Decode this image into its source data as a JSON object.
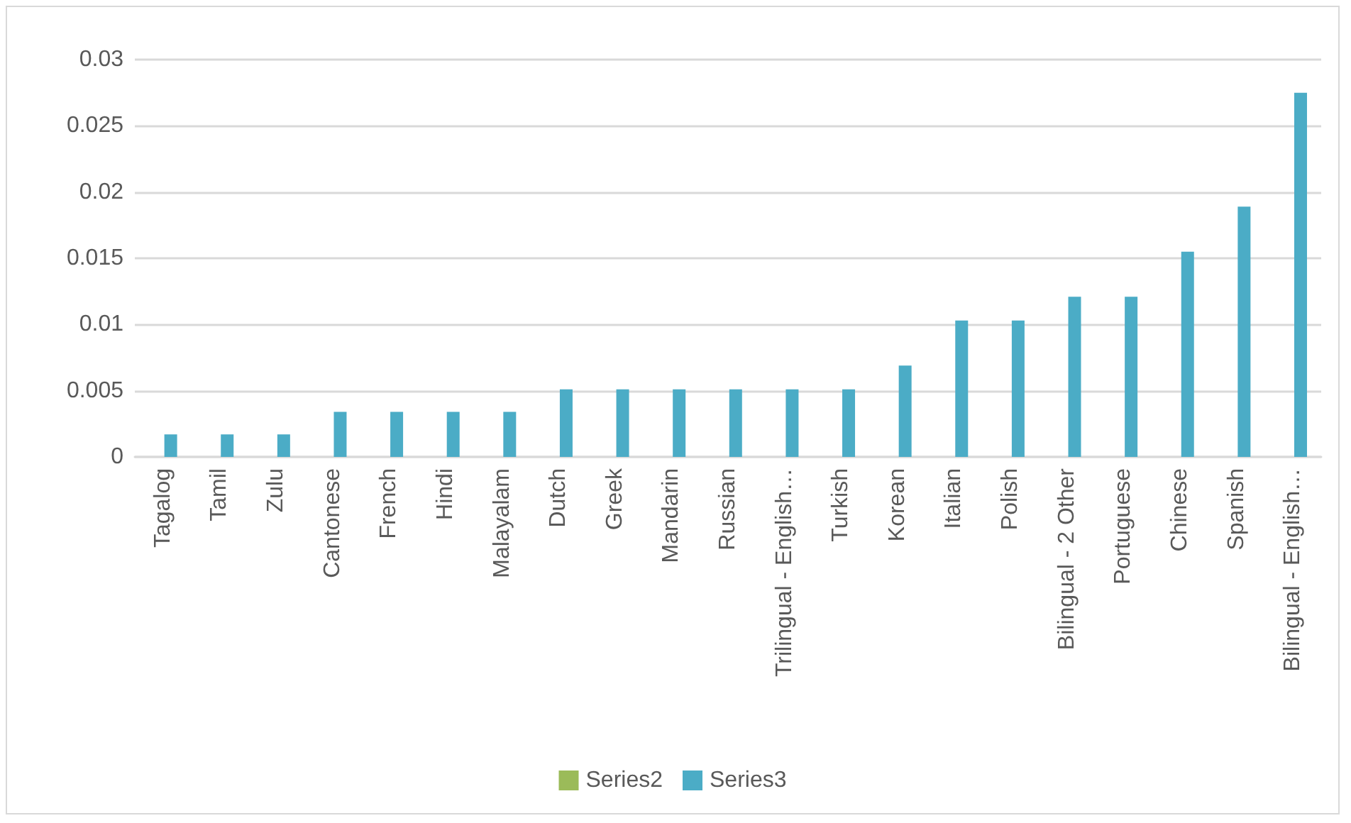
{
  "chart_data": {
    "type": "bar",
    "categories": [
      "Tagalog",
      "Tamil",
      "Zulu",
      "Cantonese",
      "French",
      "Hindi",
      "Malayalam",
      "Dutch",
      "Greek",
      "Mandarin",
      "Russian",
      "Trilingual - English…",
      "Turkish",
      "Korean",
      "Italian",
      "Polish",
      "Bilingual - 2 Other",
      "Portuguese",
      "Chinese",
      "Spanish",
      "Bilingual - English…"
    ],
    "series": [
      {
        "name": "Series2",
        "color": "#9bbb59",
        "values": [
          null,
          null,
          null,
          null,
          null,
          null,
          null,
          null,
          null,
          null,
          null,
          null,
          null,
          null,
          null,
          null,
          null,
          null,
          null,
          null,
          null
        ]
      },
      {
        "name": "Series3",
        "color": "#4bacc6",
        "values": [
          0.0017,
          0.0017,
          0.0017,
          0.0034,
          0.0034,
          0.0034,
          0.0034,
          0.0051,
          0.0051,
          0.0051,
          0.0051,
          0.0051,
          0.0051,
          0.0069,
          0.0103,
          0.0103,
          0.0121,
          0.0121,
          0.0155,
          0.0189,
          0.0275
        ]
      }
    ],
    "ylim": [
      0,
      0.03
    ],
    "yticks": [
      0,
      0.005,
      0.01,
      0.015,
      0.02,
      0.025,
      0.03
    ],
    "grid": "y",
    "legend": "bottom"
  }
}
